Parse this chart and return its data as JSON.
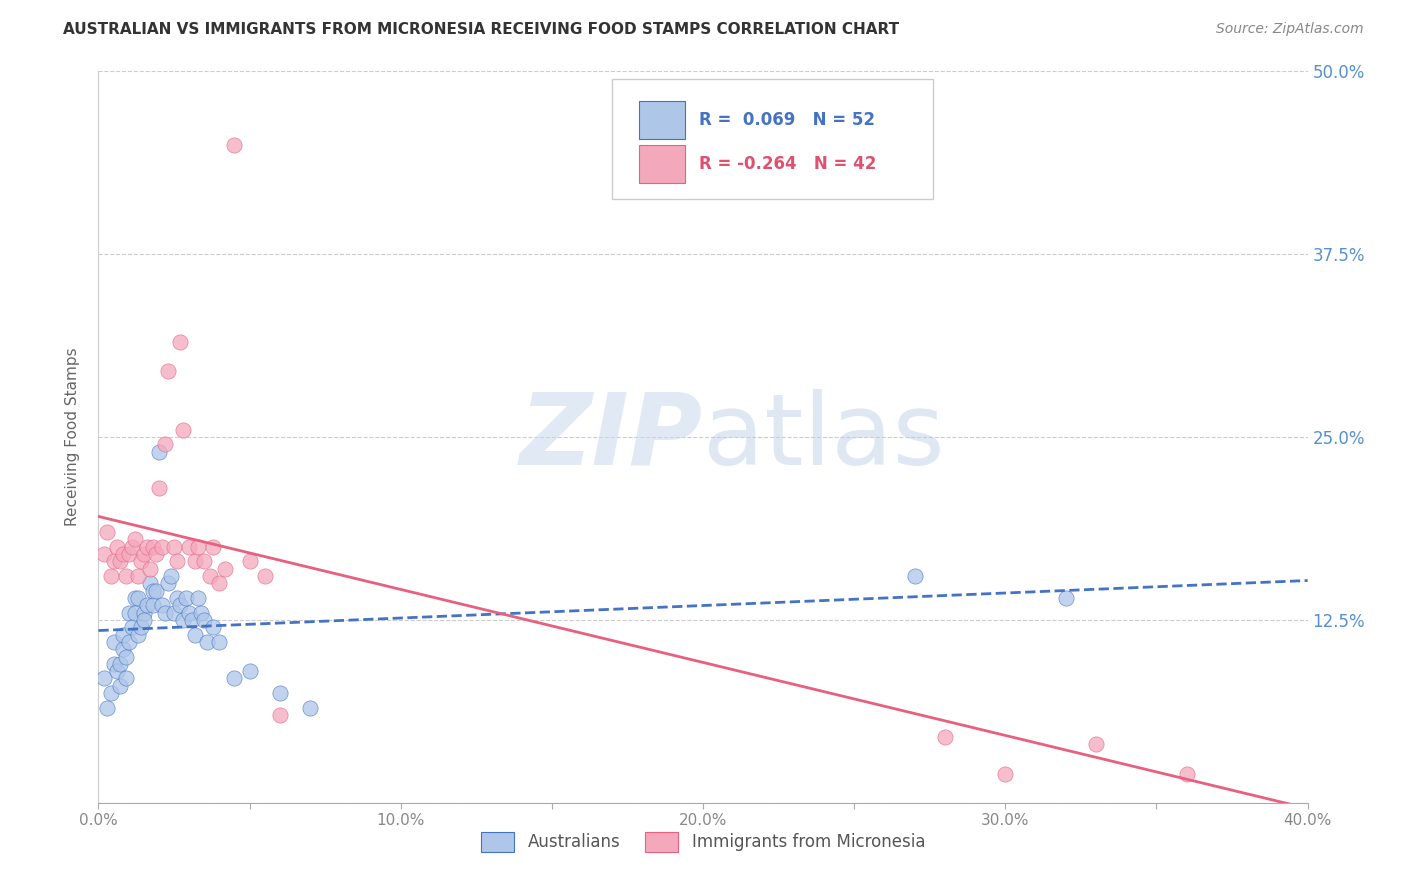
{
  "title": "AUSTRALIAN VS IMMIGRANTS FROM MICRONESIA RECEIVING FOOD STAMPS CORRELATION CHART",
  "source": "Source: ZipAtlas.com",
  "ylabel": "Receiving Food Stamps",
  "xlim": [
    0.0,
    0.4
  ],
  "ylim": [
    0.0,
    0.5
  ],
  "xtick_labels": [
    "0.0%",
    "",
    "10.0%",
    "",
    "20.0%",
    "",
    "30.0%",
    "",
    "40.0%"
  ],
  "xtick_vals": [
    0.0,
    0.05,
    0.1,
    0.15,
    0.2,
    0.25,
    0.3,
    0.35,
    0.4
  ],
  "ytick_vals": [
    0.0,
    0.125,
    0.25,
    0.375,
    0.5
  ],
  "ytick_labels_right": [
    "",
    "12.5%",
    "25.0%",
    "37.5%",
    "50.0%"
  ],
  "legend_blue_label": "Australians",
  "legend_pink_label": "Immigrants from Micronesia",
  "blue_R": "0.069",
  "blue_N": "52",
  "pink_R": "-0.264",
  "pink_N": "42",
  "blue_color": "#aec6e8",
  "pink_color": "#f4a8bc",
  "blue_line_color": "#4472c4",
  "pink_line_color": "#e86080",
  "watermark_zip": "ZIP",
  "watermark_atlas": "atlas",
  "background_color": "#ffffff",
  "blue_scatter_x": [
    0.002,
    0.003,
    0.004,
    0.005,
    0.005,
    0.006,
    0.007,
    0.007,
    0.008,
    0.008,
    0.009,
    0.009,
    0.01,
    0.01,
    0.011,
    0.012,
    0.012,
    0.013,
    0.013,
    0.014,
    0.015,
    0.015,
    0.016,
    0.017,
    0.018,
    0.018,
    0.019,
    0.02,
    0.021,
    0.022,
    0.023,
    0.024,
    0.025,
    0.026,
    0.027,
    0.028,
    0.029,
    0.03,
    0.031,
    0.032,
    0.033,
    0.034,
    0.035,
    0.036,
    0.038,
    0.04,
    0.045,
    0.05,
    0.06,
    0.07,
    0.27,
    0.32
  ],
  "blue_scatter_y": [
    0.085,
    0.065,
    0.075,
    0.11,
    0.095,
    0.09,
    0.08,
    0.095,
    0.105,
    0.115,
    0.1,
    0.085,
    0.13,
    0.11,
    0.12,
    0.14,
    0.13,
    0.14,
    0.115,
    0.12,
    0.13,
    0.125,
    0.135,
    0.15,
    0.145,
    0.135,
    0.145,
    0.24,
    0.135,
    0.13,
    0.15,
    0.155,
    0.13,
    0.14,
    0.135,
    0.125,
    0.14,
    0.13,
    0.125,
    0.115,
    0.14,
    0.13,
    0.125,
    0.11,
    0.12,
    0.11,
    0.085,
    0.09,
    0.075,
    0.065,
    0.155,
    0.14
  ],
  "pink_scatter_x": [
    0.002,
    0.003,
    0.004,
    0.005,
    0.006,
    0.007,
    0.008,
    0.009,
    0.01,
    0.011,
    0.012,
    0.013,
    0.014,
    0.015,
    0.016,
    0.017,
    0.018,
    0.019,
    0.02,
    0.021,
    0.022,
    0.023,
    0.025,
    0.026,
    0.027,
    0.028,
    0.03,
    0.032,
    0.033,
    0.035,
    0.037,
    0.038,
    0.04,
    0.042,
    0.045,
    0.05,
    0.055,
    0.06,
    0.28,
    0.3,
    0.33,
    0.36
  ],
  "pink_scatter_y": [
    0.17,
    0.185,
    0.155,
    0.165,
    0.175,
    0.165,
    0.17,
    0.155,
    0.17,
    0.175,
    0.18,
    0.155,
    0.165,
    0.17,
    0.175,
    0.16,
    0.175,
    0.17,
    0.215,
    0.175,
    0.245,
    0.295,
    0.175,
    0.165,
    0.315,
    0.255,
    0.175,
    0.165,
    0.175,
    0.165,
    0.155,
    0.175,
    0.15,
    0.16,
    0.45,
    0.165,
    0.155,
    0.06,
    0.045,
    0.02,
    0.04,
    0.02
  ]
}
